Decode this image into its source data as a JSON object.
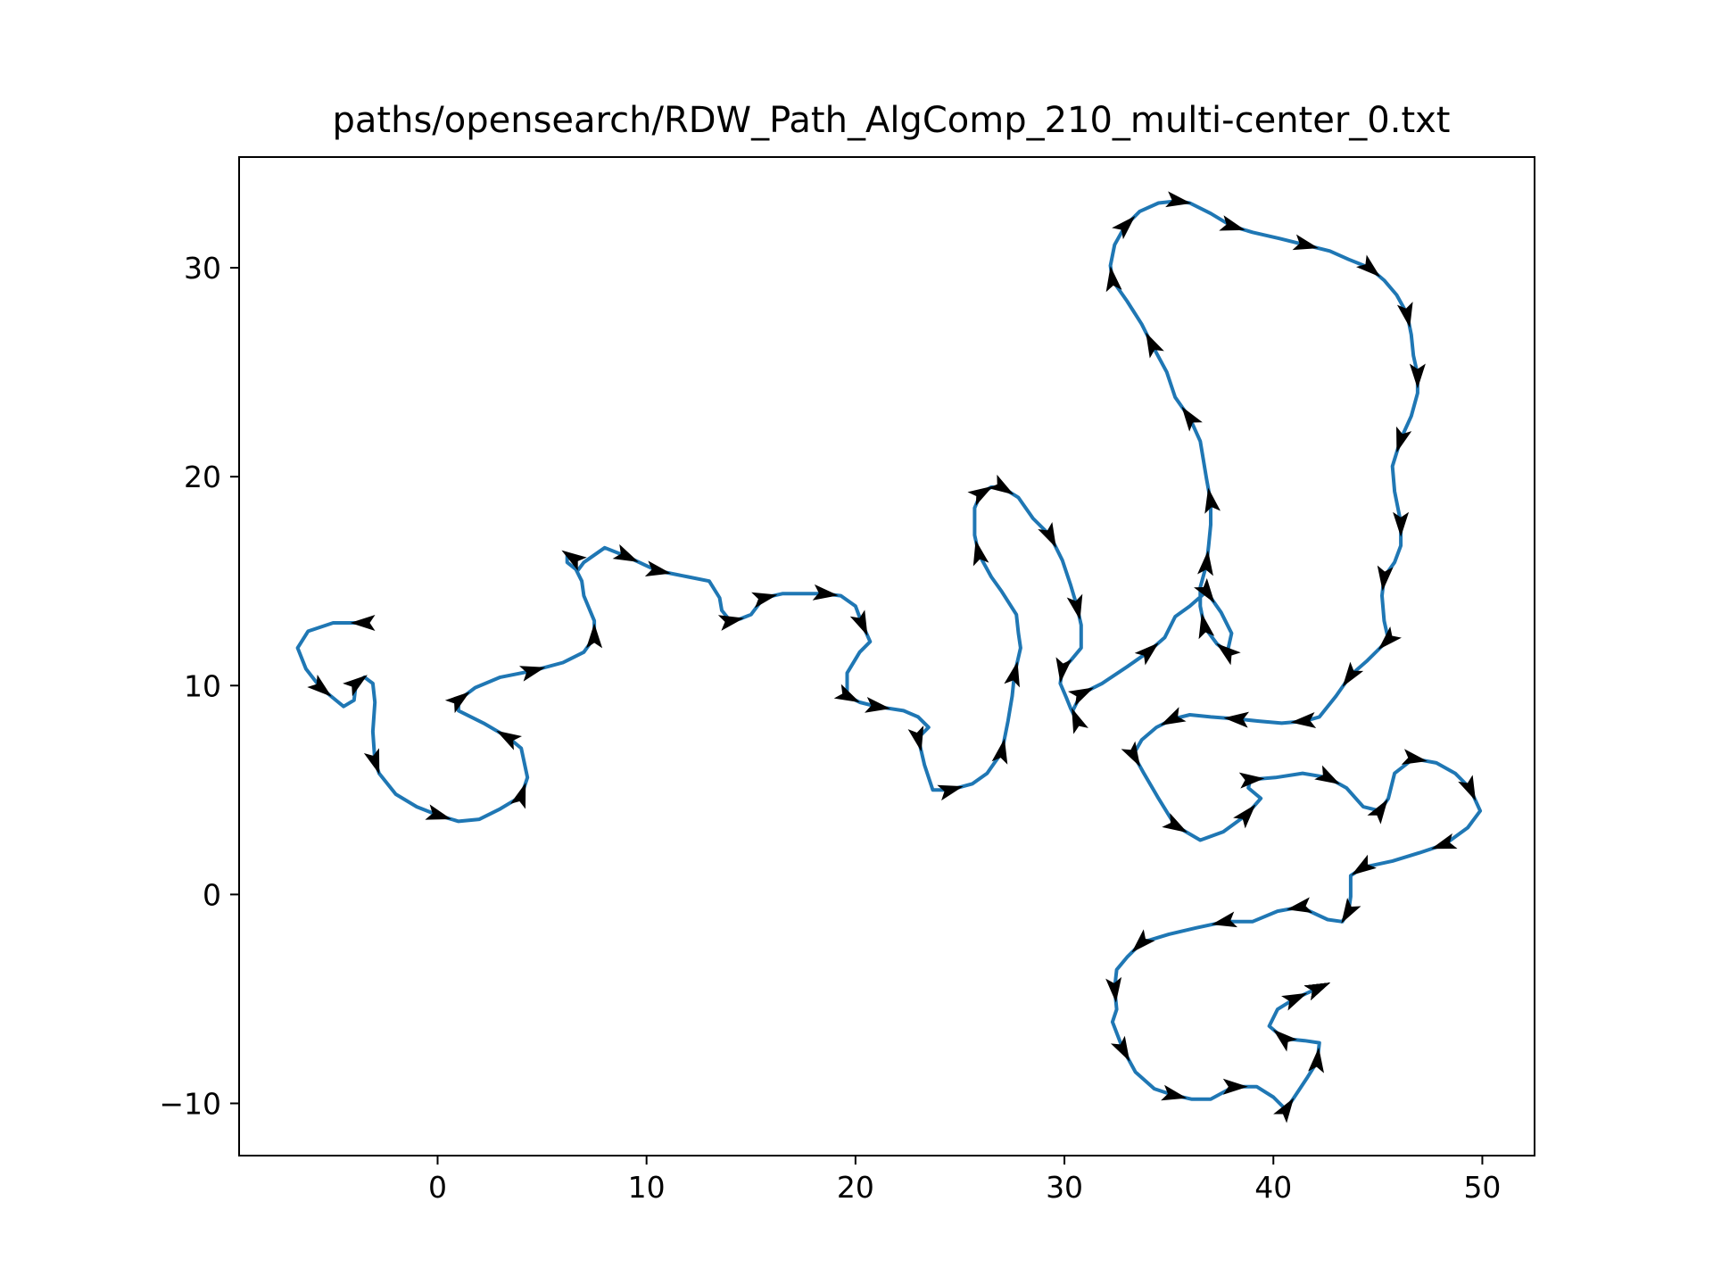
{
  "chart_data": {
    "type": "line",
    "title": "paths/opensearch/RDW_Path_AlgComp_210_multi-center_0.txt",
    "xlabel": "",
    "ylabel": "",
    "xlim": [
      -9.5,
      52.5
    ],
    "ylim": [
      -12.5,
      35.3
    ],
    "xticks": [
      0,
      10,
      20,
      30,
      40,
      50
    ],
    "yticks": [
      -10,
      0,
      10,
      20,
      30
    ],
    "xtick_labels": [
      "0",
      "10",
      "20",
      "30",
      "40",
      "50"
    ],
    "ytick_labels": [
      "−10",
      "0",
      "10",
      "20",
      "30"
    ],
    "grid": false,
    "legend": "none",
    "series": [
      {
        "color": "#1f77b4",
        "arrow_color": "#000000",
        "points": [
          [
            -3.5,
            13.0
          ],
          [
            -5.0,
            13.0
          ],
          [
            -6.2,
            12.6
          ],
          [
            -6.7,
            11.8
          ],
          [
            -6.3,
            10.8
          ],
          [
            -5.6,
            9.9
          ],
          [
            -4.5,
            9.0
          ],
          [
            -4.0,
            9.3
          ],
          [
            -3.9,
            10.1
          ],
          [
            -3.5,
            10.4
          ],
          [
            -3.1,
            10.1
          ],
          [
            -3.0,
            9.2
          ],
          [
            -3.1,
            7.8
          ],
          [
            -3.0,
            6.4
          ],
          [
            -2.8,
            5.8
          ],
          [
            -2.0,
            4.8
          ],
          [
            -1.0,
            4.2
          ],
          [
            0.0,
            3.8
          ],
          [
            1.0,
            3.5
          ],
          [
            2.0,
            3.6
          ],
          [
            3.0,
            4.1
          ],
          [
            4.0,
            4.7
          ],
          [
            4.3,
            5.6
          ],
          [
            4.0,
            7.0
          ],
          [
            3.4,
            7.5
          ],
          [
            2.2,
            8.2
          ],
          [
            1.0,
            8.8
          ],
          [
            1.0,
            9.3
          ],
          [
            1.8,
            9.9
          ],
          [
            3.0,
            10.4
          ],
          [
            4.5,
            10.7
          ],
          [
            6.0,
            11.1
          ],
          [
            7.0,
            11.6
          ],
          [
            7.5,
            12.3
          ],
          [
            7.5,
            13.1
          ],
          [
            7.0,
            14.3
          ],
          [
            6.9,
            15.0
          ],
          [
            6.6,
            15.6
          ],
          [
            6.5,
            16.1
          ],
          [
            6.2,
            16.3
          ],
          [
            6.2,
            15.9
          ],
          [
            6.7,
            15.5
          ],
          [
            7.0,
            15.9
          ],
          [
            8.0,
            16.6
          ],
          [
            9.0,
            16.2
          ],
          [
            10.5,
            15.5
          ],
          [
            12.0,
            15.2
          ],
          [
            13.0,
            15.0
          ],
          [
            13.5,
            14.2
          ],
          [
            13.6,
            13.6
          ],
          [
            14.0,
            13.1
          ],
          [
            14.5,
            13.2
          ],
          [
            15.0,
            13.4
          ],
          [
            15.6,
            14.2
          ],
          [
            16.5,
            14.4
          ],
          [
            17.5,
            14.4
          ],
          [
            18.5,
            14.4
          ],
          [
            19.3,
            14.3
          ],
          [
            20.0,
            13.8
          ],
          [
            20.3,
            13.0
          ],
          [
            20.7,
            12.1
          ],
          [
            20.2,
            11.6
          ],
          [
            19.6,
            10.6
          ],
          [
            19.6,
            9.5
          ],
          [
            20.2,
            9.2
          ],
          [
            21.0,
            9.0
          ],
          [
            22.3,
            8.8
          ],
          [
            23.0,
            8.5
          ],
          [
            23.5,
            8.0
          ],
          [
            23.0,
            7.5
          ],
          [
            23.3,
            6.2
          ],
          [
            23.7,
            5.0
          ],
          [
            24.5,
            5.0
          ],
          [
            25.6,
            5.3
          ],
          [
            26.3,
            5.8
          ],
          [
            27.0,
            6.8
          ],
          [
            27.3,
            8.3
          ],
          [
            27.5,
            9.5
          ],
          [
            27.6,
            10.5
          ],
          [
            27.9,
            11.8
          ],
          [
            27.8,
            12.5
          ],
          [
            27.7,
            13.4
          ],
          [
            27.0,
            14.5
          ],
          [
            26.5,
            15.2
          ],
          [
            25.9,
            16.3
          ],
          [
            25.7,
            17.2
          ],
          [
            25.7,
            18.5
          ],
          [
            26.0,
            19.2
          ],
          [
            26.5,
            19.5
          ],
          [
            27.0,
            19.5
          ],
          [
            27.8,
            19.0
          ],
          [
            28.5,
            18.0
          ],
          [
            29.3,
            17.2
          ],
          [
            29.9,
            16.0
          ],
          [
            30.3,
            14.8
          ],
          [
            30.6,
            13.8
          ],
          [
            30.8,
            12.9
          ],
          [
            30.8,
            11.8
          ],
          [
            30.3,
            11.2
          ],
          [
            29.9,
            10.8
          ],
          [
            29.8,
            10.1
          ],
          [
            30.1,
            9.4
          ],
          [
            30.3,
            8.9
          ],
          [
            30.6,
            8.3
          ],
          [
            30.4,
            8.8
          ],
          [
            30.8,
            9.6
          ],
          [
            31.8,
            10.1
          ],
          [
            33.0,
            10.9
          ],
          [
            34.0,
            11.6
          ],
          [
            34.8,
            12.3
          ],
          [
            35.3,
            13.3
          ],
          [
            36.0,
            13.8
          ],
          [
            36.8,
            14.5
          ],
          [
            37.5,
            13.5
          ],
          [
            38.0,
            12.5
          ],
          [
            37.8,
            11.6
          ],
          [
            37.3,
            12.0
          ],
          [
            36.7,
            12.8
          ],
          [
            36.5,
            13.8
          ],
          [
            36.5,
            14.7
          ],
          [
            36.8,
            15.8
          ],
          [
            36.9,
            16.7
          ],
          [
            37.0,
            17.7
          ],
          [
            37.0,
            18.8
          ],
          [
            36.8,
            19.9
          ],
          [
            36.5,
            21.7
          ],
          [
            36.0,
            22.8
          ],
          [
            35.3,
            23.8
          ],
          [
            34.9,
            25.0
          ],
          [
            34.2,
            26.3
          ],
          [
            33.7,
            27.3
          ],
          [
            33.0,
            28.4
          ],
          [
            32.3,
            29.4
          ],
          [
            32.2,
            30.1
          ],
          [
            32.4,
            31.1
          ],
          [
            32.9,
            32.0
          ],
          [
            33.6,
            32.7
          ],
          [
            34.5,
            33.1
          ],
          [
            35.4,
            33.2
          ],
          [
            36.0,
            33.1
          ],
          [
            37.0,
            32.6
          ],
          [
            38.0,
            32.0
          ],
          [
            39.0,
            31.7
          ],
          [
            40.3,
            31.4
          ],
          [
            41.5,
            31.1
          ],
          [
            42.7,
            30.8
          ],
          [
            43.6,
            30.4
          ],
          [
            44.6,
            30.0
          ],
          [
            45.3,
            29.4
          ],
          [
            45.9,
            28.7
          ],
          [
            46.4,
            27.8
          ],
          [
            46.6,
            26.8
          ],
          [
            46.7,
            25.8
          ],
          [
            46.9,
            24.9
          ],
          [
            46.9,
            24.0
          ],
          [
            46.6,
            22.9
          ],
          [
            46.1,
            21.8
          ],
          [
            45.7,
            20.5
          ],
          [
            45.8,
            19.3
          ],
          [
            46.1,
            17.8
          ],
          [
            46.1,
            16.7
          ],
          [
            45.8,
            15.9
          ],
          [
            45.3,
            15.2
          ],
          [
            45.2,
            14.3
          ],
          [
            45.3,
            13.1
          ],
          [
            45.5,
            12.2
          ],
          [
            45.0,
            11.7
          ],
          [
            44.5,
            11.2
          ],
          [
            43.7,
            10.5
          ],
          [
            43.0,
            9.5
          ],
          [
            42.2,
            8.5
          ],
          [
            41.5,
            8.3
          ],
          [
            40.4,
            8.2
          ],
          [
            39.3,
            8.3
          ],
          [
            38.3,
            8.4
          ],
          [
            37.0,
            8.5
          ],
          [
            36.0,
            8.6
          ],
          [
            35.2,
            8.4
          ],
          [
            34.4,
            8.0
          ],
          [
            33.7,
            7.4
          ],
          [
            33.3,
            6.7
          ],
          [
            33.8,
            5.8
          ],
          [
            34.5,
            4.6
          ],
          [
            35.3,
            3.3
          ],
          [
            36.5,
            2.6
          ],
          [
            37.6,
            3.0
          ],
          [
            38.7,
            3.8
          ],
          [
            39.4,
            4.6
          ],
          [
            38.8,
            5.1
          ],
          [
            38.9,
            5.5
          ],
          [
            40.1,
            5.6
          ],
          [
            41.4,
            5.8
          ],
          [
            42.6,
            5.6
          ],
          [
            43.5,
            5.1
          ],
          [
            44.3,
            4.2
          ],
          [
            45.1,
            4.0
          ],
          [
            45.5,
            4.6
          ],
          [
            45.8,
            5.8
          ],
          [
            46.7,
            6.5
          ],
          [
            47.8,
            6.3
          ],
          [
            48.7,
            5.8
          ],
          [
            49.4,
            5.1
          ],
          [
            49.9,
            4.0
          ],
          [
            49.3,
            3.2
          ],
          [
            48.2,
            2.4
          ],
          [
            47.0,
            2.0
          ],
          [
            45.7,
            1.6
          ],
          [
            44.3,
            1.3
          ],
          [
            43.7,
            0.9
          ],
          [
            43.7,
            -0.1
          ],
          [
            43.6,
            -0.8
          ],
          [
            43.3,
            -1.3
          ],
          [
            42.6,
            -1.2
          ],
          [
            41.3,
            -0.6
          ],
          [
            40.2,
            -0.8
          ],
          [
            39.0,
            -1.3
          ],
          [
            37.7,
            -1.3
          ],
          [
            36.3,
            -1.6
          ],
          [
            35.0,
            -1.9
          ],
          [
            33.7,
            -2.3
          ],
          [
            33.0,
            -3.0
          ],
          [
            32.5,
            -3.6
          ],
          [
            32.4,
            -4.5
          ],
          [
            32.5,
            -5.5
          ],
          [
            32.3,
            -6.1
          ],
          [
            32.8,
            -7.4
          ],
          [
            33.4,
            -8.5
          ],
          [
            34.3,
            -9.3
          ],
          [
            35.2,
            -9.6
          ],
          [
            36.1,
            -9.8
          ],
          [
            37.0,
            -9.8
          ],
          [
            38.1,
            -9.2
          ],
          [
            39.2,
            -9.2
          ],
          [
            40.0,
            -9.7
          ],
          [
            40.6,
            -10.3
          ],
          [
            41.0,
            -9.7
          ],
          [
            41.6,
            -8.8
          ],
          [
            42.1,
            -8.0
          ],
          [
            42.2,
            -7.1
          ],
          [
            41.5,
            -7.0
          ],
          [
            40.5,
            -6.9
          ],
          [
            39.8,
            -6.3
          ],
          [
            40.2,
            -5.5
          ],
          [
            41.0,
            -5.0
          ],
          [
            42.1,
            -4.5
          ]
        ],
        "arrows_at_index": [
          0,
          5,
          8,
          13,
          17,
          21,
          24,
          27,
          30,
          33,
          38,
          44,
          45,
          50,
          53,
          56,
          59,
          63,
          65,
          69,
          72,
          75,
          78,
          84,
          87,
          89,
          92,
          95,
          99,
          103,
          105,
          108,
          112,
          115,
          117,
          120,
          123,
          126,
          129,
          132,
          135,
          138,
          141,
          144,
          147,
          150,
          153,
          156,
          159,
          162,
          165,
          168,
          171,
          174,
          177,
          180,
          183,
          186,
          189,
          192,
          195,
          198,
          201,
          204,
          207,
          210,
          213,
          216,
          219,
          222,
          225,
          228,
          231,
          234,
          237,
          240,
          243,
          246,
          249,
          252,
          255,
          258,
          262
        ]
      }
    ]
  }
}
